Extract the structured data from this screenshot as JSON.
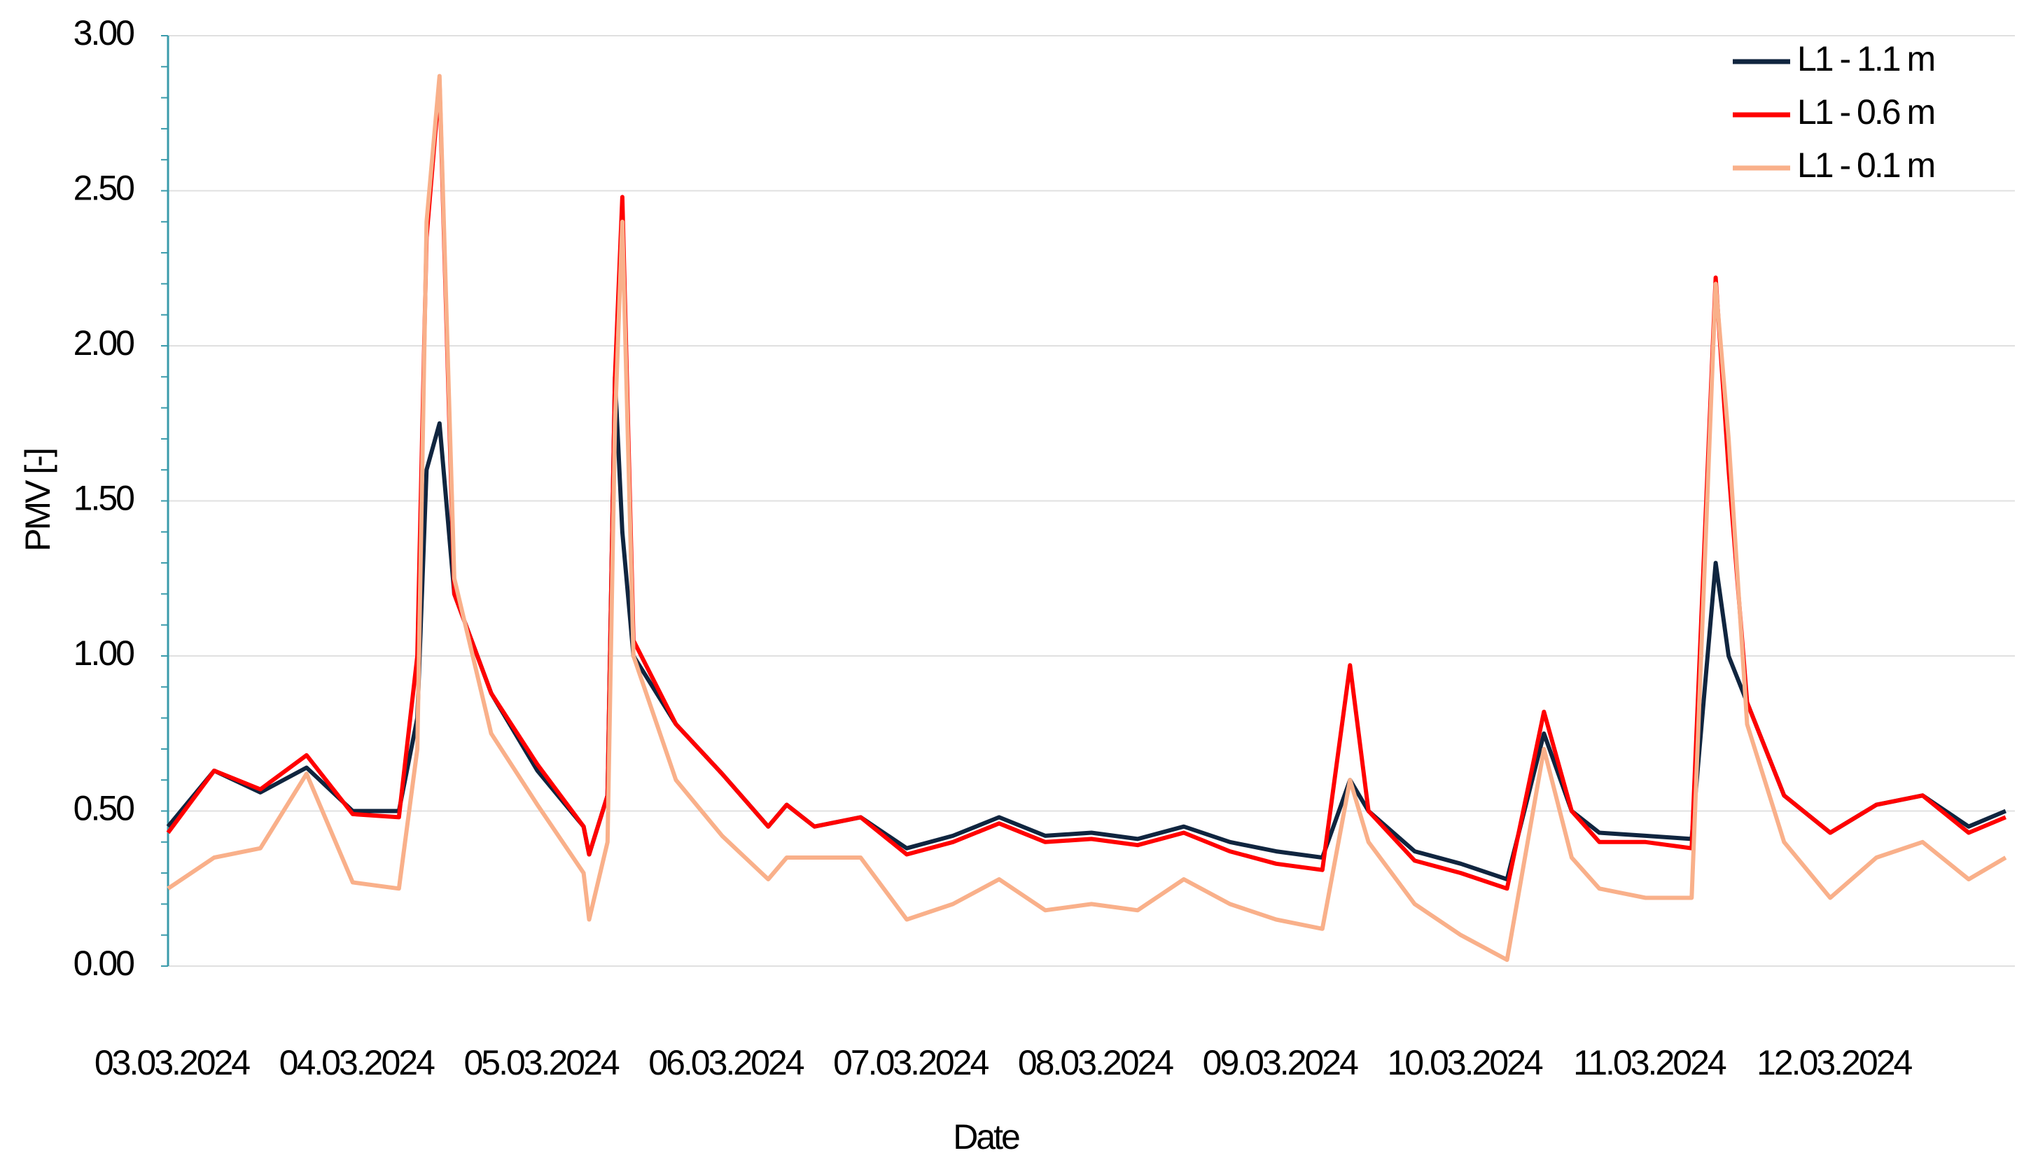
{
  "chart_data": {
    "type": "line",
    "x_label": "Date",
    "y_label": "PMV [-]",
    "x": [
      0,
      0.25,
      0.5,
      0.75,
      1.0,
      1.25,
      1.35,
      1.4,
      1.47,
      1.55,
      1.75,
      2.0,
      2.25,
      2.28,
      2.38,
      2.42,
      2.46,
      2.52,
      2.75,
      3.0,
      3.25,
      3.35,
      3.5,
      3.75,
      4.0,
      4.25,
      4.5,
      4.75,
      5.0,
      5.25,
      5.5,
      5.75,
      6.0,
      6.25,
      6.4,
      6.5,
      6.75,
      7.0,
      7.25,
      7.45,
      7.6,
      7.75,
      8.0,
      8.25,
      8.38,
      8.45,
      8.55,
      8.75,
      9.0,
      9.25,
      9.5,
      9.75,
      9.95
    ],
    "series": [
      {
        "name": "L1 - 1.1 m",
        "color": "#10253f",
        "values": [
          0.45,
          0.63,
          0.56,
          0.64,
          0.5,
          0.5,
          0.8,
          1.6,
          1.75,
          1.2,
          0.88,
          0.63,
          0.45,
          0.36,
          0.55,
          1.9,
          1.4,
          1.0,
          0.78,
          0.62,
          0.45,
          0.52,
          0.45,
          0.48,
          0.38,
          0.42,
          0.48,
          0.42,
          0.43,
          0.41,
          0.45,
          0.4,
          0.37,
          0.35,
          0.6,
          0.5,
          0.37,
          0.33,
          0.28,
          0.75,
          0.5,
          0.43,
          0.42,
          0.41,
          1.3,
          1.0,
          0.85,
          0.55,
          0.43,
          0.52,
          0.55,
          0.45,
          0.5
        ]
      },
      {
        "name": "L1 - 0.6 m",
        "color": "#ff0000",
        "values": [
          0.43,
          0.63,
          0.57,
          0.68,
          0.49,
          0.48,
          1.0,
          2.35,
          2.85,
          1.2,
          0.88,
          0.65,
          0.45,
          0.36,
          0.55,
          1.9,
          2.48,
          1.05,
          0.78,
          0.62,
          0.45,
          0.52,
          0.45,
          0.48,
          0.36,
          0.4,
          0.46,
          0.4,
          0.41,
          0.39,
          0.43,
          0.37,
          0.33,
          0.31,
          0.97,
          0.5,
          0.34,
          0.3,
          0.25,
          0.82,
          0.5,
          0.4,
          0.4,
          0.38,
          2.22,
          1.6,
          0.85,
          0.55,
          0.43,
          0.52,
          0.55,
          0.43,
          0.48
        ]
      },
      {
        "name": "L1 - 0.1 m",
        "color": "#f9b08a",
        "values": [
          0.25,
          0.35,
          0.38,
          0.62,
          0.27,
          0.25,
          0.7,
          2.4,
          2.87,
          1.25,
          0.75,
          0.52,
          0.3,
          0.15,
          0.4,
          1.75,
          2.4,
          1.0,
          0.6,
          0.42,
          0.28,
          0.35,
          0.35,
          0.35,
          0.15,
          0.2,
          0.28,
          0.18,
          0.2,
          0.18,
          0.28,
          0.2,
          0.15,
          0.12,
          0.6,
          0.4,
          0.2,
          0.1,
          0.02,
          0.7,
          0.35,
          0.25,
          0.22,
          0.22,
          2.2,
          1.7,
          0.78,
          0.4,
          0.22,
          0.35,
          0.4,
          0.28,
          0.35
        ]
      }
    ],
    "xlim": [
      0,
      10
    ],
    "xticks": [
      {
        "value": 0,
        "label": "03.03.2024"
      },
      {
        "value": 1,
        "label": "04.03.2024"
      },
      {
        "value": 2,
        "label": "05.03.2024"
      },
      {
        "value": 3,
        "label": "06.03.2024"
      },
      {
        "value": 4,
        "label": "07.03.2024"
      },
      {
        "value": 5,
        "label": "08.03.2024"
      },
      {
        "value": 6,
        "label": "09.03.2024"
      },
      {
        "value": 7,
        "label": "10.03.2024"
      },
      {
        "value": 8,
        "label": "11.03.2024"
      },
      {
        "value": 9,
        "label": "12.03.2024"
      }
    ],
    "ylim": [
      0,
      3
    ],
    "yticks": [
      {
        "value": 0,
        "label": "0.00"
      },
      {
        "value": 0.5,
        "label": "0.50"
      },
      {
        "value": 1,
        "label": "1.00"
      },
      {
        "value": 1.5,
        "label": "1.50"
      },
      {
        "value": 2,
        "label": "2.00"
      },
      {
        "value": 2.5,
        "label": "2.50"
      },
      {
        "value": 3,
        "label": "3.00"
      }
    ],
    "grid": true,
    "legend": "upper right"
  }
}
